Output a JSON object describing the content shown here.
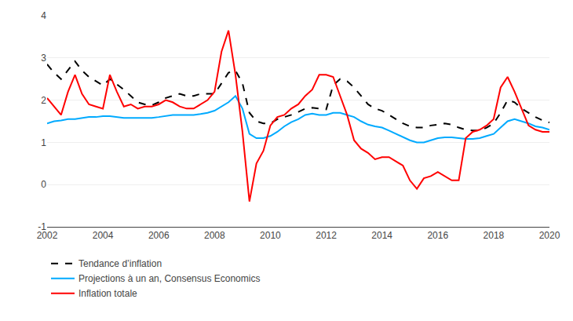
{
  "chart_data": {
    "type": "line",
    "x": [
      2002,
      2002.25,
      2002.5,
      2002.75,
      2003,
      2003.25,
      2003.5,
      2003.75,
      2004,
      2004.25,
      2004.5,
      2004.75,
      2005,
      2005.25,
      2005.5,
      2005.75,
      2006,
      2006.25,
      2006.5,
      2006.75,
      2007,
      2007.25,
      2007.5,
      2007.75,
      2008,
      2008.25,
      2008.5,
      2008.75,
      2009,
      2009.25,
      2009.5,
      2009.75,
      2010,
      2010.25,
      2010.5,
      2010.75,
      2011,
      2011.25,
      2011.5,
      2011.75,
      2012,
      2012.25,
      2012.5,
      2012.75,
      2013,
      2013.25,
      2013.5,
      2013.75,
      2014,
      2014.25,
      2014.5,
      2014.75,
      2015,
      2015.25,
      2015.5,
      2015.75,
      2016,
      2016.25,
      2016.5,
      2016.75,
      2017,
      2017.25,
      2017.5,
      2017.75,
      2018,
      2018.25,
      2018.5,
      2018.75,
      2019,
      2019.25,
      2019.5,
      2019.75,
      2020
    ],
    "series": [
      {
        "name": "Tendance d’inflation",
        "color": "#000000",
        "line_style": "dashed",
        "values": [
          2.85,
          2.65,
          2.5,
          2.7,
          2.92,
          2.7,
          2.55,
          2.45,
          2.35,
          2.5,
          2.38,
          2.25,
          2.1,
          1.95,
          1.9,
          1.88,
          1.95,
          2.05,
          2.1,
          2.15,
          2.1,
          2.1,
          2.15,
          2.15,
          2.15,
          2.4,
          2.65,
          2.7,
          2.4,
          1.7,
          1.5,
          1.45,
          1.45,
          1.55,
          1.6,
          1.65,
          1.72,
          1.8,
          1.82,
          1.8,
          1.78,
          2.35,
          2.5,
          2.45,
          2.3,
          2.1,
          1.9,
          1.8,
          1.75,
          1.65,
          1.55,
          1.45,
          1.38,
          1.35,
          1.35,
          1.4,
          1.42,
          1.45,
          1.42,
          1.35,
          1.3,
          1.28,
          1.28,
          1.35,
          1.45,
          1.7,
          2.0,
          1.95,
          1.8,
          1.7,
          1.6,
          1.52,
          1.47
        ]
      },
      {
        "name": "Projections à un an, Consensus Economics",
        "color": "#00aaff",
        "line_style": "solid",
        "values": [
          1.45,
          1.5,
          1.52,
          1.55,
          1.55,
          1.58,
          1.6,
          1.6,
          1.62,
          1.62,
          1.6,
          1.58,
          1.58,
          1.58,
          1.58,
          1.58,
          1.6,
          1.62,
          1.65,
          1.65,
          1.65,
          1.65,
          1.67,
          1.7,
          1.75,
          1.85,
          1.95,
          2.1,
          1.8,
          1.2,
          1.1,
          1.1,
          1.15,
          1.25,
          1.38,
          1.48,
          1.55,
          1.65,
          1.68,
          1.65,
          1.65,
          1.7,
          1.7,
          1.65,
          1.6,
          1.5,
          1.42,
          1.38,
          1.35,
          1.28,
          1.2,
          1.12,
          1.05,
          1.0,
          1.0,
          1.05,
          1.1,
          1.12,
          1.12,
          1.1,
          1.08,
          1.08,
          1.1,
          1.15,
          1.2,
          1.35,
          1.5,
          1.55,
          1.5,
          1.45,
          1.38,
          1.35,
          1.3
        ]
      },
      {
        "name": "Inflation totale",
        "color": "#ff0000",
        "line_style": "solid",
        "values": [
          2.05,
          1.85,
          1.65,
          2.2,
          2.6,
          2.15,
          1.9,
          1.85,
          1.8,
          2.6,
          2.2,
          1.85,
          1.9,
          1.8,
          1.85,
          1.85,
          1.9,
          2.0,
          1.95,
          1.85,
          1.8,
          1.8,
          1.9,
          2.0,
          2.2,
          3.15,
          3.65,
          2.6,
          1.25,
          -0.4,
          0.5,
          0.8,
          1.4,
          1.6,
          1.65,
          1.8,
          1.9,
          2.1,
          2.25,
          2.6,
          2.6,
          2.55,
          2.1,
          1.65,
          1.05,
          0.85,
          0.75,
          0.6,
          0.65,
          0.65,
          0.55,
          0.45,
          0.1,
          -0.1,
          0.15,
          0.2,
          0.3,
          0.2,
          0.1,
          0.1,
          1.1,
          1.25,
          1.3,
          1.4,
          1.55,
          2.3,
          2.55,
          2.2,
          1.8,
          1.4,
          1.3,
          1.25,
          1.25
        ]
      }
    ],
    "xlim": [
      2002,
      2020
    ],
    "ylim": [
      -1,
      4
    ],
    "xticks": [
      2002,
      2004,
      2006,
      2008,
      2010,
      2012,
      2014,
      2016,
      2018,
      2020
    ],
    "yticks": [
      -1,
      0,
      1,
      2,
      3,
      4
    ],
    "grid": true,
    "legend": "bottom"
  }
}
